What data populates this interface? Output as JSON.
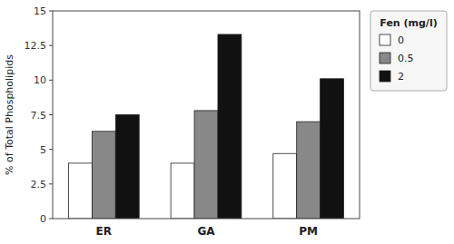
{
  "chart_data": {
    "type": "bar",
    "categories": [
      "ER",
      "GA",
      "PM"
    ],
    "series": [
      {
        "name": "0",
        "color": "#ffffff",
        "values": [
          4.0,
          4.0,
          4.7
        ]
      },
      {
        "name": "0.5",
        "color": "#888888",
        "values": [
          6.3,
          7.8,
          7.0
        ]
      },
      {
        "name": "2",
        "color": "#111111",
        "values": [
          7.5,
          13.3,
          10.1
        ]
      }
    ],
    "ylabel": "% of Total Phospholipids",
    "legend_title": "Fen (mg/l)",
    "ylim": [
      0,
      15
    ],
    "yticks": [
      0,
      2.5,
      5,
      7.5,
      10,
      12.5,
      15
    ],
    "legend": "right",
    "grid": false
  }
}
